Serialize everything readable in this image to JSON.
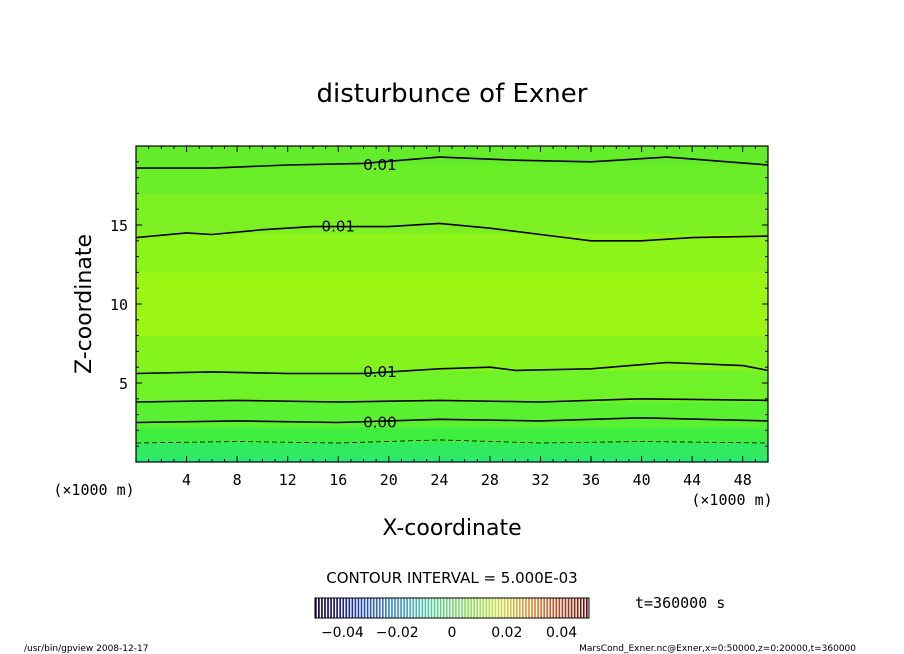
{
  "chart_data": {
    "type": "contour",
    "title": "disturbunce of Exner",
    "xlabel": "X-coordinate",
    "ylabel": "Z-coordinate",
    "x_unit": "(×1000 m)",
    "y_unit": "(×1000 m)",
    "xlim": [
      0,
      50
    ],
    "ylim": [
      0,
      20
    ],
    "x_ticks": [
      4,
      8,
      12,
      16,
      20,
      24,
      28,
      32,
      36,
      40,
      44,
      48
    ],
    "y_ticks": [
      5,
      10,
      15
    ],
    "fill_bands": [
      {
        "z0": 0.0,
        "z1": 0.3,
        "color": "#28e878"
      },
      {
        "z0": 0.3,
        "z1": 1.2,
        "color": "#30ea60"
      },
      {
        "z0": 1.2,
        "z1": 2.2,
        "color": "#40ee40"
      },
      {
        "z0": 2.2,
        "z1": 3.8,
        "color": "#58f030"
      },
      {
        "z0": 3.8,
        "z1": 5.8,
        "color": "#70f228"
      },
      {
        "z0": 5.8,
        "z1": 8.0,
        "color": "#84f41c"
      },
      {
        "z0": 8.0,
        "z1": 12.0,
        "color": "#9af612"
      },
      {
        "z0": 12.0,
        "z1": 14.5,
        "color": "#8cf418"
      },
      {
        "z0": 14.5,
        "z1": 17.0,
        "color": "#7cf022"
      },
      {
        "z0": 17.0,
        "z1": 18.8,
        "color": "#6aee28"
      },
      {
        "z0": 18.8,
        "z1": 20.0,
        "color": "#62ec2a"
      }
    ],
    "contours": [
      {
        "label": "0.01",
        "label_x": 19.3,
        "label_z": 18.8,
        "points": [
          [
            0,
            18.6
          ],
          [
            6,
            18.6
          ],
          [
            12,
            18.8
          ],
          [
            18,
            18.9
          ],
          [
            24,
            19.3
          ],
          [
            30,
            19.1
          ],
          [
            36,
            19.0
          ],
          [
            42,
            19.3
          ],
          [
            50,
            18.8
          ]
        ]
      },
      {
        "label": "0.01",
        "label_x": 16.0,
        "label_z": 14.9,
        "points": [
          [
            0,
            14.2
          ],
          [
            4,
            14.5
          ],
          [
            6,
            14.4
          ],
          [
            10,
            14.7
          ],
          [
            14,
            14.9
          ],
          [
            20,
            14.9
          ],
          [
            24,
            15.1
          ],
          [
            28,
            14.8
          ],
          [
            32,
            14.4
          ],
          [
            36,
            14.0
          ],
          [
            40,
            14.0
          ],
          [
            44,
            14.2
          ],
          [
            50,
            14.3
          ]
        ]
      },
      {
        "label": "0.01",
        "label_x": 19.3,
        "label_z": 5.7,
        "points": [
          [
            0,
            5.6
          ],
          [
            6,
            5.7
          ],
          [
            12,
            5.6
          ],
          [
            18,
            5.6
          ],
          [
            24,
            5.9
          ],
          [
            28,
            6.0
          ],
          [
            30,
            5.8
          ],
          [
            36,
            5.9
          ],
          [
            42,
            6.3
          ],
          [
            48,
            6.1
          ],
          [
            50,
            5.8
          ]
        ]
      },
      {
        "label": "",
        "label_x": 0,
        "label_z": 0,
        "points": [
          [
            0,
            3.8
          ],
          [
            8,
            3.9
          ],
          [
            16,
            3.8
          ],
          [
            24,
            3.9
          ],
          [
            32,
            3.8
          ],
          [
            40,
            4.0
          ],
          [
            50,
            3.9
          ]
        ]
      },
      {
        "label": "0.00",
        "label_x": 19.3,
        "label_z": 2.5,
        "points": [
          [
            0,
            2.5
          ],
          [
            8,
            2.6
          ],
          [
            16,
            2.5
          ],
          [
            24,
            2.7
          ],
          [
            32,
            2.6
          ],
          [
            40,
            2.8
          ],
          [
            50,
            2.6
          ]
        ]
      },
      {
        "label": "",
        "label_x": 0,
        "label_z": 0,
        "dashed": true,
        "points": [
          [
            0,
            1.2
          ],
          [
            8,
            1.3
          ],
          [
            16,
            1.2
          ],
          [
            24,
            1.4
          ],
          [
            32,
            1.2
          ],
          [
            40,
            1.3
          ],
          [
            50,
            1.2
          ]
        ]
      }
    ],
    "contour_interval_text": "CONTOUR INTERVAL = 5.000E-03",
    "colorbar": {
      "min": -0.05,
      "max": 0.05,
      "tick_labels": [
        "−0.04",
        "−0.02",
        "0",
        "0.02",
        "0.04"
      ],
      "tick_values": [
        -0.04,
        -0.02,
        0,
        0.02,
        0.04
      ]
    },
    "time_label": "t=360000 s"
  },
  "footer": {
    "left": "/usr/bin/gpview   2008-12-17",
    "right": "MarsCond_Exner.nc@Exner,x=0:50000,z=0:20000,t=360000"
  }
}
